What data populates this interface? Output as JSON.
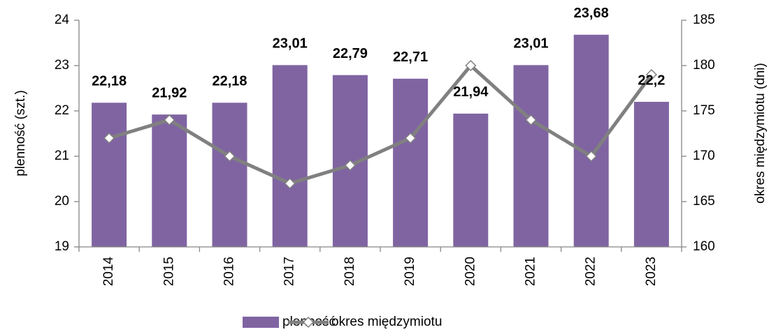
{
  "chart_data": {
    "type": "bar_line",
    "categories": [
      "2014",
      "2015",
      "2016",
      "2017",
      "2018",
      "2019",
      "2020",
      "2021",
      "2022",
      "2023"
    ],
    "series": [
      {
        "name": "plenność",
        "type": "bar",
        "color": "#8064a2",
        "values": [
          22.18,
          21.92,
          22.18,
          23.01,
          22.79,
          22.71,
          21.94,
          23.01,
          23.68,
          22.2
        ],
        "value_labels": [
          "22,18",
          "21,92",
          "22,18",
          "23,01",
          "22,79",
          "22,71",
          "21,94",
          "23,01",
          "23,68",
          "22,2"
        ]
      },
      {
        "name": "okres międzymiotu",
        "type": "line",
        "axis": "y2",
        "color": "#808080",
        "values": [
          172,
          174,
          170,
          167,
          169,
          172,
          180,
          174,
          170,
          179
        ]
      }
    ],
    "ylabel": "plenność (szt.)",
    "y2label": "okres międzymiotu (dni)",
    "ylim": [
      19,
      24
    ],
    "yticks": [
      19,
      20,
      21,
      22,
      23,
      24
    ],
    "y2lim": [
      160,
      185
    ],
    "y2ticks": [
      160,
      165,
      170,
      175,
      180,
      185
    ],
    "legend": "bottom"
  }
}
